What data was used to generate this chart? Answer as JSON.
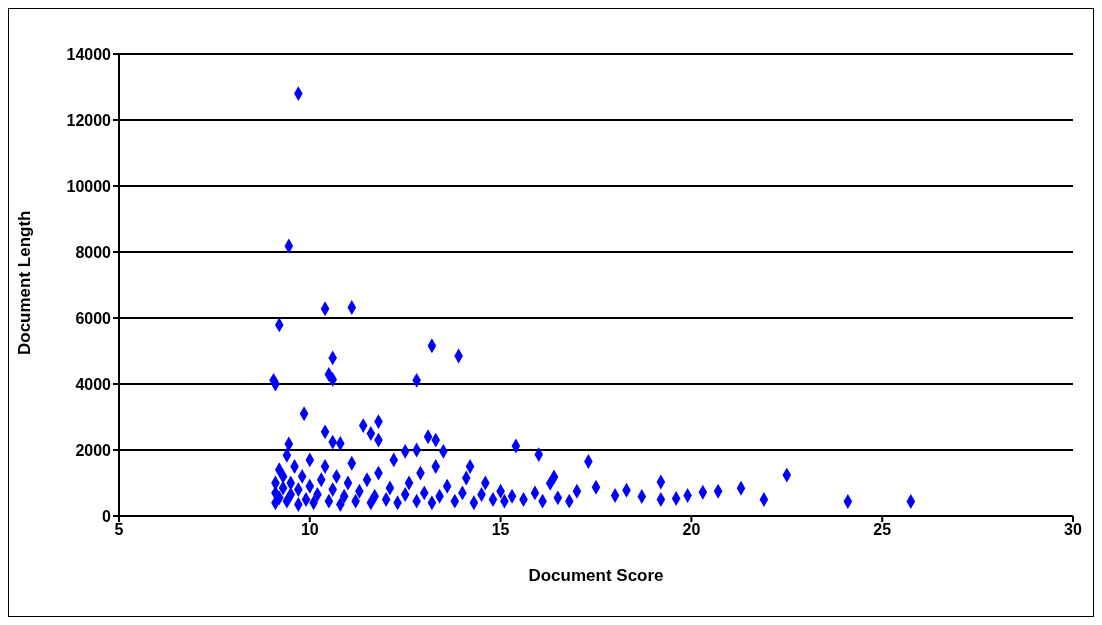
{
  "chart_data": {
    "type": "scatter",
    "xlabel": "Document Score",
    "ylabel": "Document Length",
    "xlim": [
      5,
      30
    ],
    "xticks": [
      5,
      10,
      15,
      20,
      25,
      30
    ],
    "ylim": [
      0,
      14000
    ],
    "yticks": [
      0,
      2000,
      4000,
      6000,
      8000,
      10000,
      12000,
      14000
    ],
    "grid": "y",
    "marker": "diamond",
    "series": [
      {
        "color": "#0000ff",
        "x": [
          9.7,
          9.45,
          10.4,
          11.1,
          9.2,
          10.6,
          9.05,
          9.1,
          10.5,
          10.6,
          12.8,
          13.2,
          13.9,
          9.85,
          11.4,
          11.8,
          11.8,
          10.4,
          10.6,
          10.8,
          11.6,
          13.1,
          13.3,
          13.5,
          12.5,
          12.8,
          15.4,
          16.0,
          17.3,
          9.45,
          9.4,
          16.4,
          16.3,
          17.0,
          17.5,
          18.0,
          18.3,
          18.7,
          19.2,
          19.2,
          19.6,
          19.9,
          20.3,
          20.7,
          21.3,
          21.9,
          22.5,
          24.1,
          25.75,
          9.1,
          9.1,
          9.1,
          9.2,
          9.2,
          9.3,
          9.3,
          9.4,
          9.5,
          9.5,
          9.6,
          9.7,
          9.7,
          9.8,
          9.9,
          10.0,
          10.0,
          10.1,
          10.2,
          10.3,
          10.4,
          10.5,
          10.6,
          10.7,
          10.8,
          10.9,
          11.0,
          11.1,
          11.2,
          11.3,
          11.5,
          11.6,
          11.7,
          11.8,
          12.0,
          12.1,
          12.2,
          12.3,
          12.5,
          12.6,
          12.8,
          12.9,
          13.0,
          13.2,
          13.3,
          13.4,
          13.6,
          13.8,
          14.0,
          14.1,
          14.2,
          14.3,
          14.5,
          14.6,
          14.8,
          15.0,
          15.1,
          15.3,
          15.6,
          15.9,
          16.1,
          16.5,
          16.8
        ],
        "values": [
          12800,
          8180,
          6280,
          6320,
          5790,
          4790,
          4110,
          4000,
          4290,
          4140,
          4110,
          5160,
          4850,
          3100,
          2740,
          2860,
          2300,
          2550,
          2240,
          2200,
          2500,
          2400,
          2300,
          1960,
          1960,
          2000,
          2120,
          1860,
          1650,
          2180,
          1840,
          1180,
          990,
          750,
          870,
          620,
          780,
          590,
          500,
          1030,
          530,
          620,
          720,
          750,
          840,
          500,
          1240,
          440,
          440,
          400,
          700,
          1000,
          1400,
          550,
          850,
          1200,
          450,
          650,
          1000,
          1500,
          350,
          800,
          1200,
          500,
          900,
          1700,
          400,
          650,
          1100,
          1500,
          450,
          800,
          1200,
          350,
          600,
          1000,
          1600,
          450,
          750,
          1100,
          400,
          600,
          1300,
          500,
          850,
          1700,
          400,
          650,
          1000,
          450,
          1300,
          700,
          400,
          1500,
          600,
          900,
          450,
          700,
          1150,
          1500,
          400,
          650,
          1000,
          500,
          750,
          450,
          600,
          500,
          700,
          450,
          550,
          450
        ]
      }
    ]
  }
}
